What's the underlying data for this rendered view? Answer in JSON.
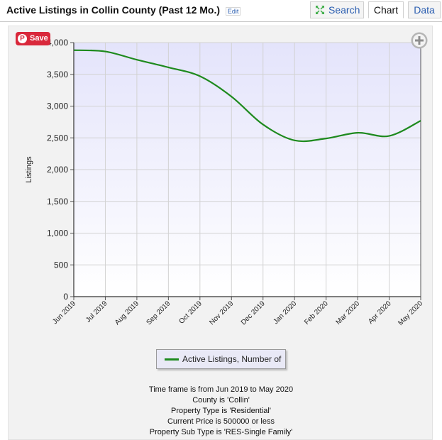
{
  "header": {
    "title": "Active Listings in Collin County (Past 12 Mo.)",
    "edit_label": "Edit",
    "tabs": {
      "search": "Search",
      "chart": "Chart",
      "data": "Data"
    }
  },
  "save_button": {
    "label": "Save"
  },
  "chart_data": {
    "type": "line",
    "categories": [
      "Jun 2019",
      "Jul 2019",
      "Aug 2019",
      "Sep 2019",
      "Oct 2019",
      "Nov 2019",
      "Dec 2019",
      "Jan 2020",
      "Feb 2020",
      "Mar 2020",
      "Apr 2020",
      "May 2020"
    ],
    "series": [
      {
        "name": "Active Listings, Number of",
        "values": [
          3880,
          3860,
          3730,
          3610,
          3470,
          3150,
          2710,
          2460,
          2490,
          2580,
          2530,
          2770
        ],
        "color": "#1e8a1e"
      }
    ],
    "ylabel": "Listings",
    "ylim": [
      0,
      4000
    ],
    "yticks": [
      0,
      500,
      1000,
      1500,
      2000,
      2500,
      3000,
      3500,
      4000
    ],
    "ytick_labels": [
      "0",
      "500",
      "1,000",
      "1,500",
      "2,000",
      "2,500",
      "3,000",
      "3,500",
      "4,000"
    ],
    "grid": true,
    "legend_position": "bottom-center"
  },
  "criteria": [
    "Time frame is from Jun 2019 to May 2020",
    "County is 'Collin'",
    "Property Type is 'Residential'",
    "Current Price is 500000 or less",
    "Property Sub Type is 'RES-Single Family'"
  ]
}
